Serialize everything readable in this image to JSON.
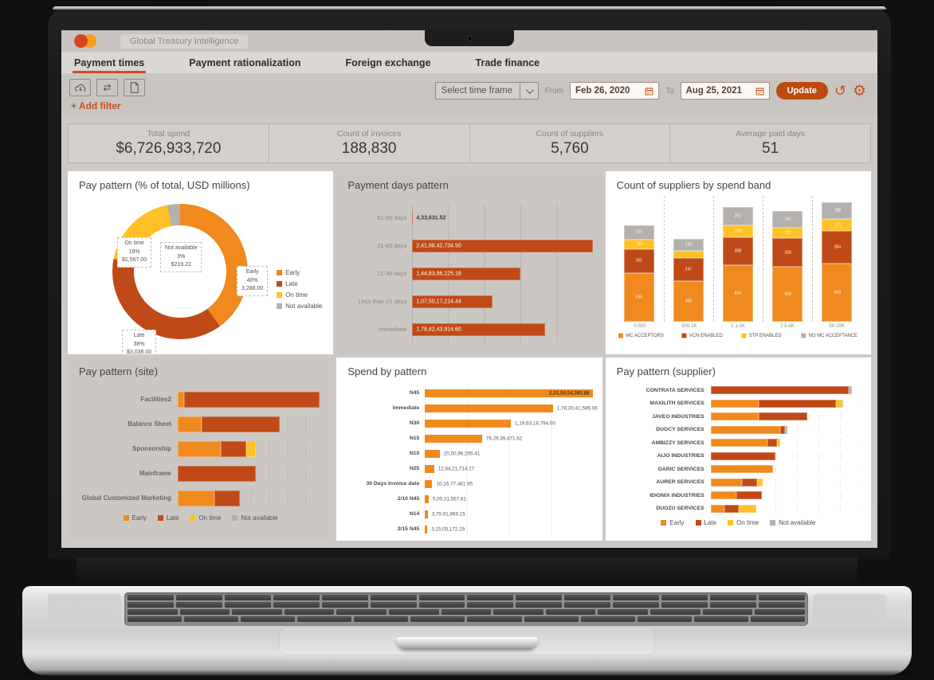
{
  "header": {
    "brand_label": "Global Treasury Intelligence"
  },
  "tabs": [
    "Payment times",
    "Payment rationalization",
    "Foreign exchange",
    "Trade finance"
  ],
  "active_tab": "Payment times",
  "toolbar": {
    "icon_buttons": [
      "cloud-download",
      "transfer-arrows",
      "new-document"
    ],
    "add_filter": "+ Add filter",
    "timeframe": "Select time frame",
    "from_label": "From",
    "from_date": "Feb 26, 2020",
    "to_label": "To",
    "to_date": "Aug 25, 2021",
    "update": "Update",
    "action_icons": [
      "undo",
      "settings"
    ]
  },
  "kpis": [
    {
      "label": "Total spend",
      "value": "$6,726,933,720"
    },
    {
      "label": "Count of invoices",
      "value": "188,830"
    },
    {
      "label": "Count of suppliers",
      "value": "5,760"
    },
    {
      "label": "Average paid days",
      "value": "51"
    }
  ],
  "colors": {
    "early": "#F08A1E",
    "late": "#BF4A17",
    "on_time": "#FFC125",
    "not_available": "#B3B0AD",
    "accent": "#C8511C",
    "update_button": "#BD4A10"
  },
  "chart_data": [
    {
      "type": "pie",
      "variant": "donut",
      "title": "Pay pattern (% of total, USD millions)",
      "slices": [
        {
          "label": "Early",
          "pct": 40,
          "value": "3,288.00",
          "color": "#F08A1E"
        },
        {
          "label": "Late",
          "pct": 38,
          "value": "$3,038.00",
          "color": "#BF4A17"
        },
        {
          "label": "On time",
          "pct": 19,
          "value": "$1,567.00",
          "color": "#FFC125"
        },
        {
          "label": "Not available",
          "pct": 3,
          "value": "$219.22",
          "color": "#B3B0AD"
        }
      ],
      "legend": [
        "Early",
        "Late",
        "On time",
        "Not available"
      ],
      "legend_position": "right"
    },
    {
      "type": "bar",
      "orientation": "horizontal",
      "title": "Payment days pattern",
      "categories": [
        "61-90 days",
        "31-60 days",
        "21-30 days",
        "Less than 21 days",
        "Immediate"
      ],
      "values": [
        433631.52,
        2418842734.5,
        1448396225.18,
        1075017214.44,
        1784243914.6
      ],
      "value_labels": [
        "4,33,631.52",
        "2,41,88,42,734.50",
        "1,44,83,96,225.18",
        "1,07,50,17,214.44",
        "1,78,42,43,914.60"
      ],
      "color": "#BF4A17",
      "grid": true
    },
    {
      "type": "bar",
      "variant": "stacked-column",
      "title": "Count of suppliers by spend band",
      "categories": [
        "0-500",
        "500-1K",
        "1-1.5K",
        "2.5-5K",
        "5K-10K"
      ],
      "series": [
        {
          "name": "MC ACCEPTORS",
          "color": "#F08A1E",
          "values": [
            536,
            450,
            624,
            603,
            643
          ]
        },
        {
          "name": "VCN ENABLED",
          "color": "#BF4A17",
          "values": [
            261,
            247,
            308,
            316,
            354
          ]
        },
        {
          "name": "STP ENABLED",
          "color": "#FFC125",
          "values": [
            110,
            80,
            126,
            118,
            129
          ]
        },
        {
          "name": "NO MC ACCEPTANCE",
          "color": "#B3B0AD",
          "values": [
            153,
            134,
            201,
            182,
            188
          ]
        }
      ],
      "values_estimated_from_pixels": true,
      "legend_position": "bottom"
    },
    {
      "type": "bar",
      "variant": "stacked-horizontal",
      "title": "Pay pattern (site)",
      "units": "percent_of_axis",
      "categories": [
        "Facilities2",
        "Balance Sheet",
        "Sponsorship",
        "Mainframe",
        "Global Customized Marketing"
      ],
      "series": [
        {
          "name": "Early",
          "color": "#F08A1E",
          "values": [
            4.5,
            16.3,
            29.2,
            0,
            25
          ]
        },
        {
          "name": "Late",
          "color": "#BF4A17",
          "values": [
            92.5,
            53.7,
            17.8,
            53.3,
            17.5
          ]
        },
        {
          "name": "On time",
          "color": "#FFC125",
          "values": [
            0,
            0,
            6.7,
            0,
            0
          ]
        },
        {
          "name": "Not available",
          "color": "#B3B0AD",
          "values": [
            0.6,
            0.8,
            0.8,
            0.7,
            0.8
          ]
        }
      ],
      "values_estimated_from_pixels": true,
      "legend": [
        "Early",
        "Late",
        "On time",
        "Not available"
      ],
      "legend_position": "bottom"
    },
    {
      "type": "bar",
      "orientation": "horizontal",
      "title": "Spend by pattern",
      "categories": [
        "N45",
        "Immediate",
        "N30",
        "N15",
        "N10",
        "N25",
        "30 Days Invoice date",
        "2/10 N45",
        "N14",
        "2/15 N45"
      ],
      "values": [
        2335454385.88,
        1783041586.06,
        1196318794.0,
        792939471.62,
        205096295.41,
        126421714.27,
        101677481.95,
        50031557.81,
        37991969.15,
        31505172.29
      ],
      "value_labels": [
        "2,33,54,54,385.88",
        "1,78,30,41,586.06",
        "1,19,63,18,794.00",
        "79,29,39,471.62",
        "20,50,96,295.41",
        "12,64,21,714.27",
        "10,16,77,481.95",
        "5,00,31,557.81",
        "3,79,91,969.15",
        "3,15,05,172.29"
      ],
      "color": "#F08A1E",
      "grid": true
    },
    {
      "type": "bar",
      "variant": "stacked-horizontal",
      "title": "Pay pattern (supplier)",
      "units": "percent_of_axis",
      "categories": [
        "CONTRATA SERVICES",
        "MAXILITH SERVICES",
        "JAVEO INDUSTRIES",
        "DUOCY SERVICES",
        "AMBIZZY SERVICES",
        "AIJO INDUSTRIES",
        "GARIC SERVICES",
        "AURER SERVICES",
        "IDIONIX INDUSTRIES",
        "DUOZU SERVICES"
      ],
      "series": [
        {
          "name": "Early",
          "color": "#F08A1E",
          "values": [
            0,
            32,
            32,
            46,
            37.5,
            0,
            41.3,
            20.7,
            17.2,
            9
          ]
        },
        {
          "name": "Late",
          "color": "#BF4A17",
          "values": [
            91.6,
            51,
            32,
            3.5,
            6.6,
            42.7,
            0,
            10,
            16.6,
            9.8
          ]
        },
        {
          "name": "On time",
          "color": "#FFC125",
          "values": [
            0,
            4.2,
            0,
            0,
            2,
            0,
            0,
            3.9,
            0,
            11.5
          ]
        },
        {
          "name": "Not available",
          "color": "#B3B0AD",
          "values": [
            2,
            0.7,
            0,
            1.4,
            0,
            0,
            0,
            0,
            0,
            0
          ]
        }
      ],
      "values_estimated_from_pixels": true,
      "legend": [
        "Early",
        "Late",
        "On time",
        "Not available"
      ],
      "legend_position": "bottom"
    }
  ]
}
